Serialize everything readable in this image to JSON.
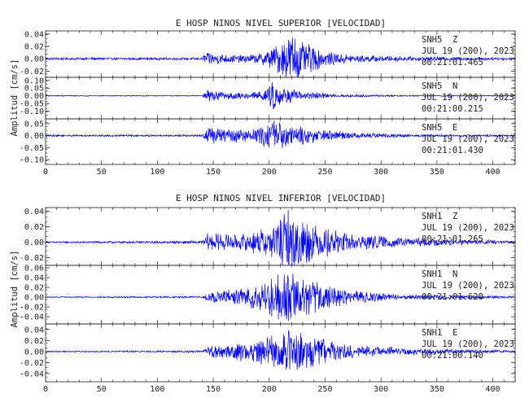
{
  "chart_data": [
    {
      "type": "line",
      "title": "E HOSP NINOS NIVEL SUPERIOR [VELOCIDAD]",
      "ylabel": "Amplitud [cm/s]",
      "xlabel": "",
      "xlim": [
        0,
        420
      ],
      "x_ticks": [
        "0",
        "50",
        "100",
        "150",
        "200",
        "250",
        "300",
        "350",
        "400"
      ],
      "grid": false,
      "color": "#0000ff",
      "traces": [
        {
          "station": "SNH5",
          "component": "Z",
          "date": "JUL 19 (200), 2023",
          "time": "00:21:01.465",
          "ylim": [
            -0.03,
            0.045
          ],
          "y_ticks": [
            "0.04",
            "0.02",
            "0.00",
            "-0.02"
          ],
          "envelope": [
            [
              0,
              0.002
            ],
            [
              140,
              0.002
            ],
            [
              143,
              0.012
            ],
            [
              150,
              0.01
            ],
            [
              170,
              0.006
            ],
            [
              190,
              0.008
            ],
            [
              205,
              0.02
            ],
            [
              215,
              0.035
            ],
            [
              220,
              0.045
            ],
            [
              230,
              0.03
            ],
            [
              250,
              0.012
            ],
            [
              280,
              0.006
            ],
            [
              320,
              0.004
            ],
            [
              420,
              0.002
            ]
          ]
        },
        {
          "station": "SNH5",
          "component": "N",
          "date": "JUL 19 (200), 2023",
          "time": "00:21:00.215",
          "ylim": [
            -0.15,
            0.12
          ],
          "y_ticks": [
            "0.10",
            "0.05",
            "0.00",
            "-0.05",
            "-0.10"
          ],
          "envelope": [
            [
              0,
              0.003
            ],
            [
              140,
              0.003
            ],
            [
              145,
              0.04
            ],
            [
              155,
              0.03
            ],
            [
              180,
              0.02
            ],
            [
              198,
              0.04
            ],
            [
              204,
              0.12
            ],
            [
              210,
              0.06
            ],
            [
              230,
              0.03
            ],
            [
              260,
              0.01
            ],
            [
              320,
              0.005
            ],
            [
              420,
              0.003
            ]
          ]
        },
        {
          "station": "SNH5",
          "component": "E",
          "date": "JUL 19 (200), 2023",
          "time": "00:21:01.430",
          "ylim": [
            -0.12,
            0.07
          ],
          "y_ticks": [
            "0.05",
            "0.00",
            "-0.05",
            "-0.10"
          ],
          "envelope": [
            [
              0,
              0.004
            ],
            [
              140,
              0.004
            ],
            [
              145,
              0.04
            ],
            [
              160,
              0.03
            ],
            [
              190,
              0.03
            ],
            [
              203,
              0.08
            ],
            [
              215,
              0.05
            ],
            [
              240,
              0.03
            ],
            [
              280,
              0.012
            ],
            [
              330,
              0.006
            ],
            [
              420,
              0.004
            ]
          ]
        }
      ]
    },
    {
      "type": "line",
      "title": "E HOSP NINOS NIVEL INFERIOR [VELOCIDAD]",
      "ylabel": "Amplitud [cm/s]",
      "xlabel": "",
      "xlim": [
        0,
        420
      ],
      "x_ticks": [
        "0",
        "50",
        "100",
        "150",
        "200",
        "250",
        "300",
        "350",
        "400"
      ],
      "grid": false,
      "color": "#0000ff",
      "traces": [
        {
          "station": "SNH1",
          "component": "Z",
          "date": "JUL 19 (200), 2023",
          "time": "00:21:01.265",
          "ylim": [
            -0.03,
            0.045
          ],
          "y_ticks": [
            "0.04",
            "0.02",
            "0.00",
            "-0.02"
          ],
          "envelope": [
            [
              0,
              0.001
            ],
            [
              140,
              0.002
            ],
            [
              145,
              0.012
            ],
            [
              170,
              0.01
            ],
            [
              200,
              0.02
            ],
            [
              218,
              0.045
            ],
            [
              225,
              0.04
            ],
            [
              240,
              0.025
            ],
            [
              270,
              0.012
            ],
            [
              320,
              0.006
            ],
            [
              420,
              0.002
            ]
          ]
        },
        {
          "station": "SNH1",
          "component": "N",
          "date": "JUL 19 (200), 2023",
          "time": "00:21:01.620",
          "ylim": [
            -0.055,
            0.065
          ],
          "y_ticks": [
            "0.06",
            "0.04",
            "0.02",
            "0.00",
            "-0.02",
            "-0.04"
          ],
          "envelope": [
            [
              0,
              0.001
            ],
            [
              140,
              0.002
            ],
            [
              148,
              0.012
            ],
            [
              180,
              0.02
            ],
            [
              200,
              0.04
            ],
            [
              215,
              0.06
            ],
            [
              225,
              0.05
            ],
            [
              245,
              0.03
            ],
            [
              270,
              0.015
            ],
            [
              320,
              0.006
            ],
            [
              420,
              0.002
            ]
          ]
        },
        {
          "station": "SNH1",
          "component": "E",
          "date": "JUL 19 (200), 2023",
          "time": "00:21:00.140",
          "ylim": [
            -0.055,
            0.05
          ],
          "y_ticks": [
            "0.04",
            "0.02",
            "0.00",
            "-0.02",
            "-0.04"
          ],
          "envelope": [
            [
              0,
              0.001
            ],
            [
              140,
              0.002
            ],
            [
              148,
              0.012
            ],
            [
              180,
              0.02
            ],
            [
              205,
              0.03
            ],
            [
              215,
              0.045
            ],
            [
              225,
              0.04
            ],
            [
              245,
              0.025
            ],
            [
              280,
              0.012
            ],
            [
              330,
              0.006
            ],
            [
              420,
              0.002
            ]
          ]
        }
      ]
    }
  ]
}
